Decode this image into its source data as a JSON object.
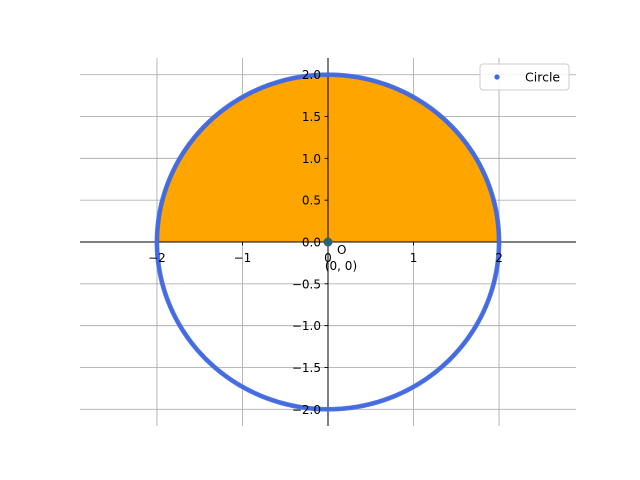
{
  "chart_data": {
    "type": "scatter",
    "title": "",
    "xlabel": "",
    "ylabel": "",
    "xlim": [
      -2.9,
      2.9
    ],
    "ylim": [
      -2.2,
      2.2
    ],
    "xticks": [
      -2,
      -1,
      0,
      1,
      2
    ],
    "xtick_labels": [
      "−2",
      "−1",
      "0",
      "1",
      "2"
    ],
    "yticks": [
      -2.0,
      -1.5,
      -1.0,
      -0.5,
      0.0,
      0.5,
      1.0,
      1.5,
      2.0
    ],
    "ytick_labels": [
      "−2.0",
      "−1.5",
      "−1.0",
      "−0.5",
      "0.0",
      "0.5",
      "1.0",
      "1.5",
      "2.0"
    ],
    "grid": true,
    "axes": "centered-spines",
    "series": [
      {
        "name": "Circle",
        "kind": "scatter",
        "shape": "circle",
        "center": [
          0,
          0
        ],
        "radius": 2,
        "color": "#4169e1"
      }
    ],
    "fill": {
      "region": "upper-semicircle",
      "x_range": [
        -2,
        2
      ],
      "y_range": [
        0,
        2
      ],
      "color": "#ffa500"
    },
    "center_point": {
      "x": 0,
      "y": 0,
      "label": "O",
      "coord_label": "(0, 0)",
      "color": "#2a6375"
    },
    "legend": {
      "placement": "top-right",
      "entries": [
        {
          "label": "Circle",
          "color": "#4169e1"
        }
      ]
    }
  }
}
